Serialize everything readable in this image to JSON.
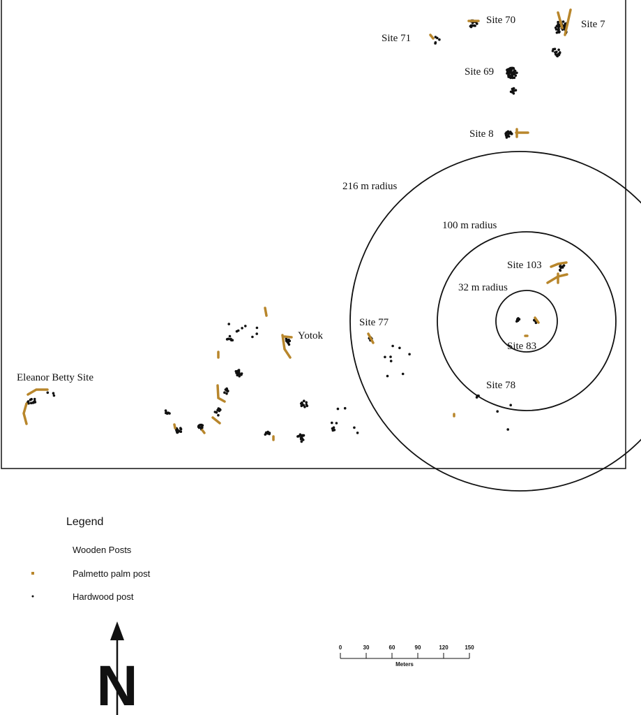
{
  "map": {
    "site_labels": [
      "Site 70",
      "Site 7",
      "Site 71",
      "Site 69",
      "Site 8",
      "Site 103",
      "Site 77",
      "Yotok",
      "Site 83",
      "Eleanor Betty Site",
      "Site 78"
    ],
    "radius_labels": [
      "216 m radius",
      "100 m radius",
      "32 m radius"
    ]
  },
  "legend": {
    "title": "Legend",
    "subtitle": "Wooden Posts",
    "items": [
      "Palmetto palm post",
      "Hardwood post"
    ]
  },
  "scale_bar": {
    "ticks": [
      0,
      30,
      60,
      90,
      120,
      150
    ],
    "unit": "Meters"
  },
  "north_arrow": {
    "label": "N"
  }
}
